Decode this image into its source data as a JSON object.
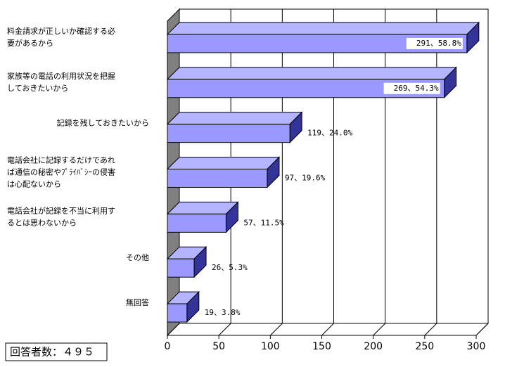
{
  "chart_data": {
    "type": "bar3d_horizontal",
    "categories": [
      [
        "料金請求が正しいか確認する必",
        "要があるから"
      ],
      [
        "家族等の電話の利用状況を把握",
        "しておきたいから"
      ],
      [
        "記録を残しておきたいから"
      ],
      [
        "電話会社に記録するだけであれ",
        "ば通信の秘密やﾌﾟﾗｲﾊﾞｼｰの侵害",
        "は心配ないから"
      ],
      [
        "電話会社が記録を不当に利用す",
        "るとは思わないから"
      ],
      [
        "その他"
      ],
      [
        "無回答"
      ]
    ],
    "values": [
      291,
      269,
      119,
      97,
      57,
      26,
      19
    ],
    "value_labels": [
      "291、58.8%",
      "269、54.3%",
      "119、24.0%",
      "97、19.6%",
      "57、11.5%",
      "26、5.3%",
      "19、3.8%"
    ],
    "xlim": [
      0,
      300
    ],
    "xticks": [
      0,
      50,
      100,
      150,
      200,
      250,
      300
    ],
    "colors": {
      "front": "#9999ff",
      "top": "#b4b4ff",
      "side": "#333399",
      "wall": "#808080"
    },
    "grid": true,
    "note": "回答者数：４９５"
  }
}
